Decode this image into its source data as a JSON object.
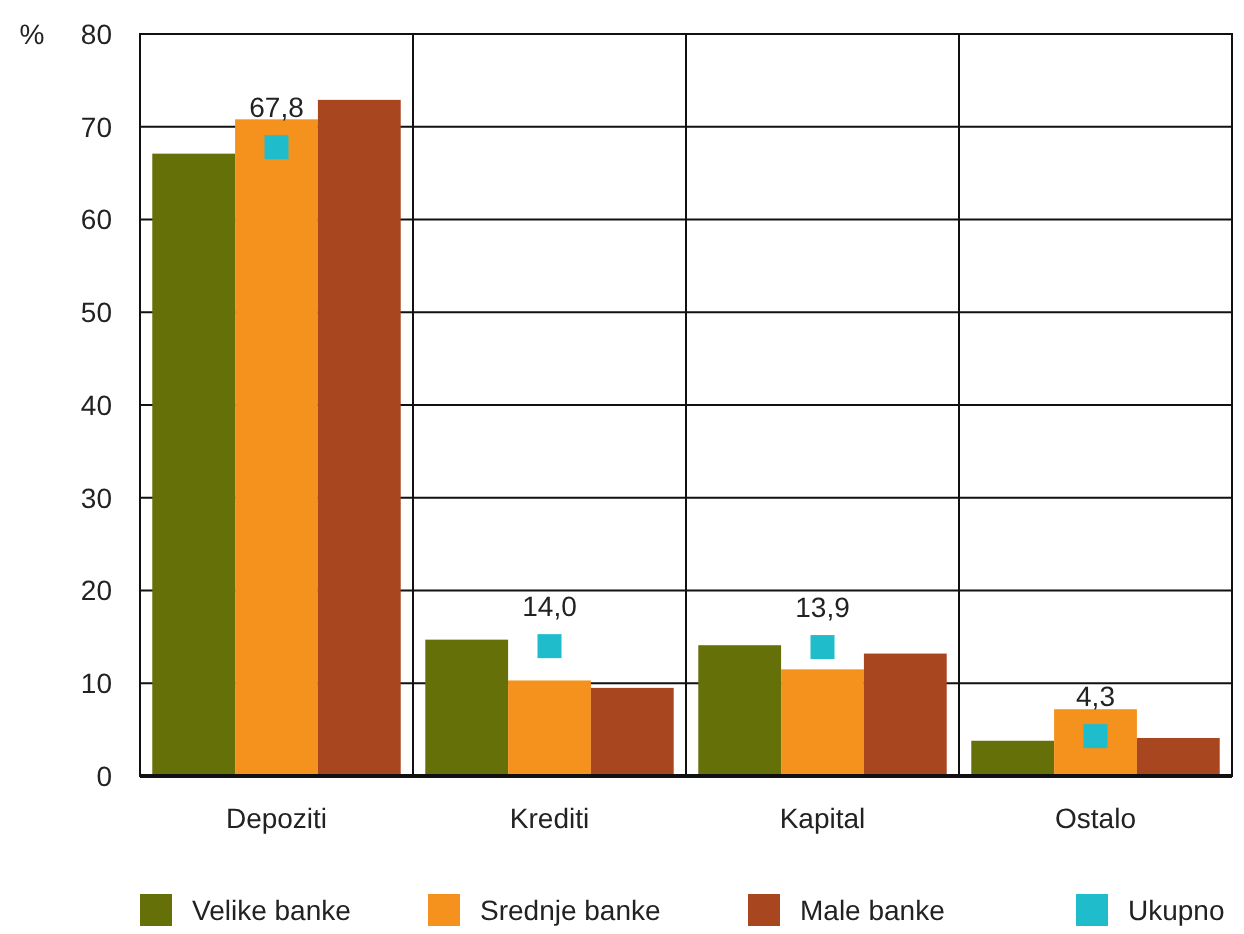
{
  "chart_data": {
    "type": "bar",
    "ylabel": "%",
    "categories": [
      "Depoziti",
      "Krediti",
      "Kapital",
      "Ostalo"
    ],
    "series": [
      {
        "name": "Velike banke",
        "color": "#667008",
        "values": [
          67.1,
          14.7,
          14.1,
          3.8
        ]
      },
      {
        "name": "Srednje banke",
        "color": "#f5921e",
        "values": [
          70.8,
          10.3,
          11.5,
          7.2
        ]
      },
      {
        "name": "Male banke",
        "color": "#a84620",
        "values": [
          72.9,
          9.5,
          13.2,
          4.1
        ]
      },
      {
        "name": "Ukupno",
        "type": "scatter",
        "color": "#1fbccc",
        "values": [
          67.8,
          14.0,
          13.9,
          4.3
        ],
        "value_labels": [
          "67,8",
          "14,0",
          "13,9",
          "4,3"
        ]
      }
    ],
    "ylim": [
      0,
      80
    ],
    "yticks": [
      0,
      10,
      20,
      30,
      40,
      50,
      60,
      70,
      80
    ],
    "grid": true,
    "legend": "bottom",
    "marker": "square"
  }
}
